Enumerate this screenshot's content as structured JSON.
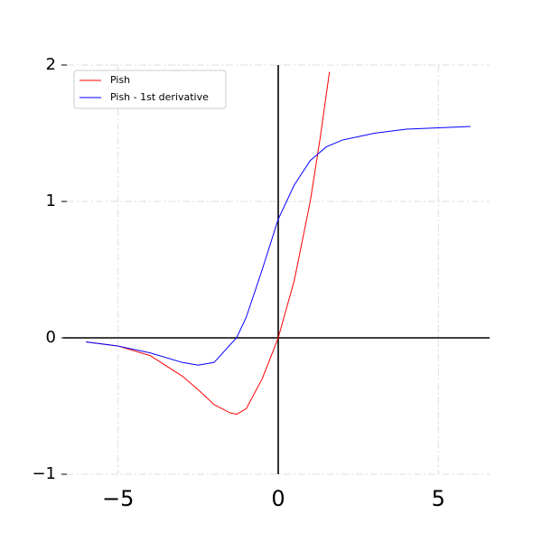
{
  "chart_data": {
    "type": "line",
    "series": [
      {
        "name": "Pish",
        "color": "#ff0000",
        "x": [
          -6,
          -5,
          -4,
          -3,
          -2.5,
          -2,
          -1.5,
          -1.3,
          -1,
          -0.5,
          0,
          0.5,
          1,
          1.3,
          1.6
        ],
        "values": [
          -0.03,
          -0.06,
          -0.13,
          -0.28,
          -0.38,
          -0.49,
          -0.55,
          -0.56,
          -0.52,
          -0.3,
          0,
          0.42,
          1.0,
          1.45,
          1.95
        ]
      },
      {
        "name": "Pish - 1st derivative",
        "color": "#0000ff",
        "x": [
          -6,
          -5,
          -4,
          -3,
          -2.5,
          -2,
          -1.5,
          -1.3,
          -1,
          -0.5,
          0,
          0.5,
          1,
          1.5,
          2,
          3,
          4,
          5,
          6
        ],
        "values": [
          -0.03,
          -0.06,
          -0.11,
          -0.18,
          -0.2,
          -0.18,
          -0.05,
          0,
          0.15,
          0.5,
          0.87,
          1.12,
          1.3,
          1.4,
          1.45,
          1.5,
          1.53,
          1.54,
          1.55
        ]
      }
    ],
    "xlim": [
      -6.6,
      6.6
    ],
    "ylim": [
      -1,
      2
    ],
    "xticks": [
      {
        "value": -5,
        "label": "−5"
      },
      0,
      5
    ],
    "yticks": [
      {
        "value": -1,
        "label": "−1"
      },
      0,
      1,
      2
    ],
    "grid": true,
    "legend": "upper left"
  }
}
